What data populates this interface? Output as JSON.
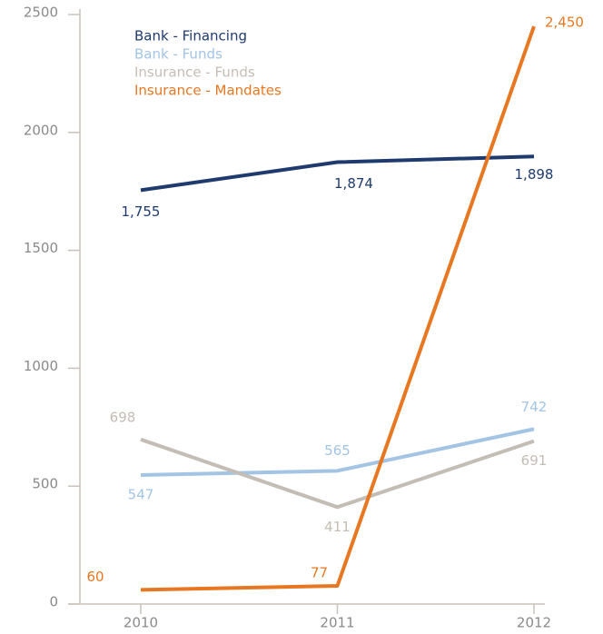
{
  "chart_data": {
    "type": "line",
    "x": [
      "2010",
      "2011",
      "2012"
    ],
    "ylim": [
      0,
      2500
    ],
    "yticks": [
      0,
      500,
      1000,
      1500,
      2000,
      2500
    ],
    "legend": "upper left",
    "series": [
      {
        "name": "Bank - Financing",
        "color": "#1f3a6e",
        "values": [
          1755,
          1874,
          1898
        ],
        "value_labels": [
          "1,755",
          "1,874",
          "1,898"
        ]
      },
      {
        "name": "Bank - Funds",
        "color": "#a3c4e4",
        "values": [
          547,
          565,
          742
        ],
        "value_labels": [
          "547",
          "565",
          "742"
        ]
      },
      {
        "name": "Insurance - Funds",
        "color": "#c4bdb5",
        "values": [
          698,
          411,
          691
        ],
        "value_labels": [
          "698",
          "411",
          "691"
        ]
      },
      {
        "name": "Insurance - Mandates",
        "color": "#e87722",
        "values": [
          60,
          77,
          2450
        ],
        "value_labels": [
          "60",
          "77",
          "2,450"
        ]
      }
    ]
  }
}
